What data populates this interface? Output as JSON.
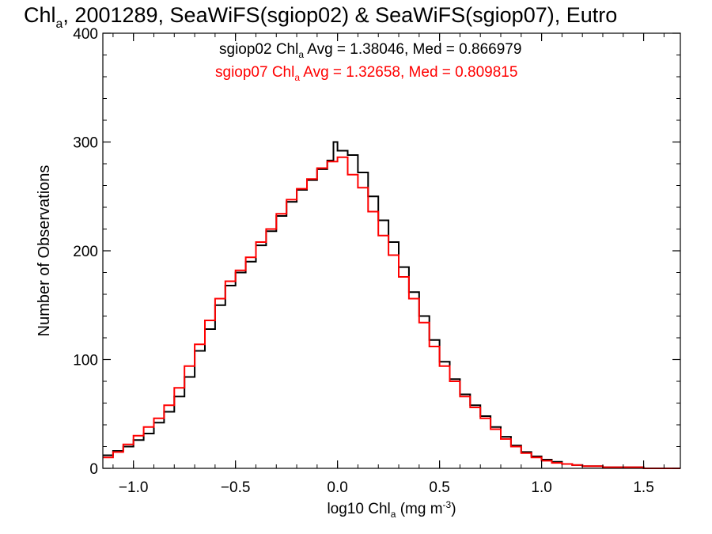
{
  "chart_data": {
    "type": "line",
    "title": {
      "main": "Chl",
      "sub": "a",
      "rest": ", 2001289, SeaWiFS(sgiop02) & SeaWiFS(sgiop07), Eutro"
    },
    "xlabel": {
      "main": "log10 Chl",
      "sub": "a",
      "unit": " (mg m",
      "sup": "-3",
      "close": ")"
    },
    "ylabel": "Number of Observations",
    "xlim": [
      -1.15,
      1.68
    ],
    "ylim": [
      0,
      400
    ],
    "x_ticks": [
      -1.0,
      -0.5,
      0.0,
      0.5,
      1.0,
      1.5
    ],
    "x_tick_labels": [
      "−1.0",
      "−0.5",
      "0.0",
      "0.5",
      "1.0",
      "1.5"
    ],
    "y_ticks": [
      0,
      100,
      200,
      300,
      400
    ],
    "y_tick_labels": [
      "0",
      "100",
      "200",
      "300",
      "400"
    ],
    "legend_position": "top-center",
    "series": [
      {
        "color": "#000000",
        "annotation": {
          "pre": "sgiop02 Chl",
          "sub": "a",
          "post": " Avg = 1.38046, Med = 0.866979"
        },
        "points": [
          [
            -1.15,
            12
          ],
          [
            -1.1,
            16
          ],
          [
            -1.05,
            20
          ],
          [
            -1.0,
            26
          ],
          [
            -0.95,
            32
          ],
          [
            -0.9,
            42
          ],
          [
            -0.85,
            52
          ],
          [
            -0.8,
            66
          ],
          [
            -0.75,
            84
          ],
          [
            -0.7,
            108
          ],
          [
            -0.65,
            128
          ],
          [
            -0.6,
            150
          ],
          [
            -0.55,
            168
          ],
          [
            -0.5,
            180
          ],
          [
            -0.45,
            190
          ],
          [
            -0.4,
            205
          ],
          [
            -0.35,
            218
          ],
          [
            -0.3,
            232
          ],
          [
            -0.25,
            245
          ],
          [
            -0.2,
            256
          ],
          [
            -0.15,
            265
          ],
          [
            -0.1,
            275
          ],
          [
            -0.05,
            283
          ],
          [
            -0.02,
            300
          ],
          [
            0.0,
            292
          ],
          [
            0.05,
            288
          ],
          [
            0.1,
            272
          ],
          [
            0.15,
            250
          ],
          [
            0.2,
            228
          ],
          [
            0.25,
            208
          ],
          [
            0.3,
            185
          ],
          [
            0.35,
            162
          ],
          [
            0.4,
            140
          ],
          [
            0.45,
            118
          ],
          [
            0.5,
            98
          ],
          [
            0.55,
            82
          ],
          [
            0.6,
            68
          ],
          [
            0.65,
            58
          ],
          [
            0.7,
            48
          ],
          [
            0.75,
            38
          ],
          [
            0.8,
            29
          ],
          [
            0.85,
            21
          ],
          [
            0.9,
            15
          ],
          [
            0.95,
            11
          ],
          [
            1.0,
            8
          ],
          [
            1.05,
            6
          ],
          [
            1.1,
            4
          ],
          [
            1.15,
            3
          ],
          [
            1.2,
            2
          ],
          [
            1.3,
            1
          ],
          [
            1.4,
            1
          ],
          [
            1.5,
            0
          ],
          [
            1.6,
            0
          ]
        ]
      },
      {
        "color": "#ff0000",
        "annotation": {
          "pre": "sgiop07 Chl",
          "sub": "a",
          "post": " Avg = 1.32658, Med = 0.809815"
        },
        "points": [
          [
            -1.15,
            10
          ],
          [
            -1.1,
            15
          ],
          [
            -1.05,
            22
          ],
          [
            -1.0,
            30
          ],
          [
            -0.95,
            38
          ],
          [
            -0.9,
            46
          ],
          [
            -0.85,
            58
          ],
          [
            -0.8,
            74
          ],
          [
            -0.75,
            94
          ],
          [
            -0.7,
            114
          ],
          [
            -0.65,
            136
          ],
          [
            -0.6,
            156
          ],
          [
            -0.55,
            172
          ],
          [
            -0.5,
            182
          ],
          [
            -0.45,
            194
          ],
          [
            -0.4,
            208
          ],
          [
            -0.35,
            220
          ],
          [
            -0.3,
            234
          ],
          [
            -0.25,
            247
          ],
          [
            -0.2,
            257
          ],
          [
            -0.15,
            266
          ],
          [
            -0.1,
            276
          ],
          [
            -0.05,
            282
          ],
          [
            0.0,
            286
          ],
          [
            0.05,
            270
          ],
          [
            0.1,
            258
          ],
          [
            0.15,
            236
          ],
          [
            0.2,
            214
          ],
          [
            0.25,
            196
          ],
          [
            0.3,
            176
          ],
          [
            0.35,
            156
          ],
          [
            0.4,
            134
          ],
          [
            0.45,
            112
          ],
          [
            0.5,
            94
          ],
          [
            0.55,
            80
          ],
          [
            0.6,
            66
          ],
          [
            0.65,
            56
          ],
          [
            0.7,
            46
          ],
          [
            0.75,
            36
          ],
          [
            0.8,
            27
          ],
          [
            0.85,
            20
          ],
          [
            0.9,
            14
          ],
          [
            0.95,
            10
          ],
          [
            1.0,
            7
          ],
          [
            1.05,
            5
          ],
          [
            1.1,
            4
          ],
          [
            1.15,
            3
          ],
          [
            1.2,
            2
          ],
          [
            1.3,
            1
          ],
          [
            1.4,
            1
          ],
          [
            1.5,
            0
          ],
          [
            1.6,
            0
          ]
        ]
      }
    ]
  }
}
